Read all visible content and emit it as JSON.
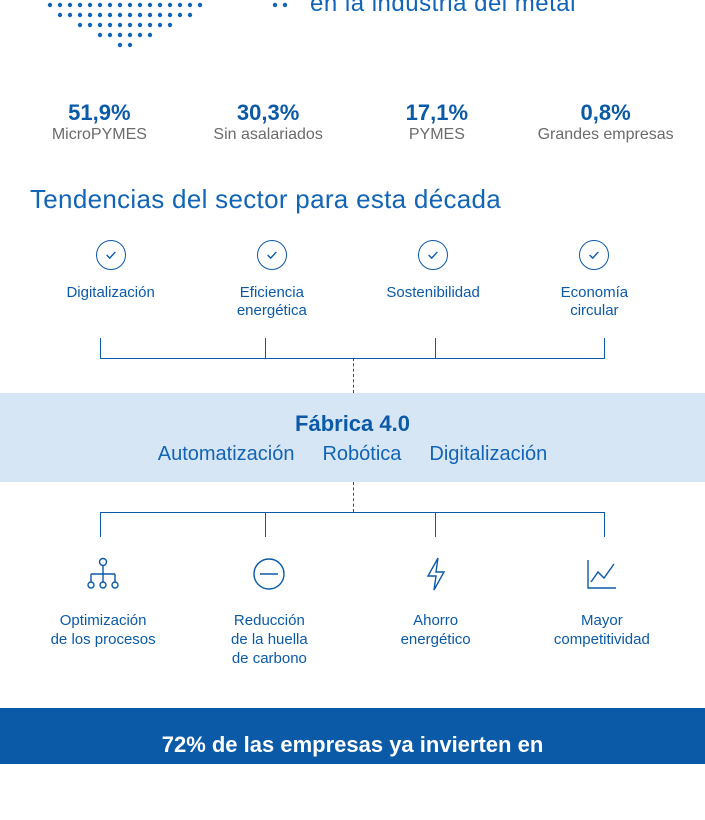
{
  "header": {
    "partial_title": "en la industria del metal"
  },
  "colors": {
    "primary": "#0b5aa8",
    "primary_light": "#1264b6",
    "band_bg": "#d7e6f4",
    "text_muted": "#6b6b6b",
    "footer_bg": "#0b5aa8",
    "footer_text": "#ffffff",
    "dot": "#1264b6"
  },
  "stats": [
    {
      "pct": "51,9%",
      "label": "MicroPYMES"
    },
    {
      "pct": "30,3%",
      "label": "Sin asalariados"
    },
    {
      "pct": "17,1%",
      "label": "PYMES"
    },
    {
      "pct": "0,8%",
      "label": "Grandes empresas"
    }
  ],
  "section_title": "Tendencias del sector para esta década",
  "trends": [
    {
      "label": "Digitalización"
    },
    {
      "label": "Eficiencia\nenergética"
    },
    {
      "label": "Sostenibilidad"
    },
    {
      "label": "Economía\ncircular"
    }
  ],
  "fabrica": {
    "title": "Fábrica 4.0",
    "subs": [
      "Automatización",
      "Robótica",
      "Digitalización"
    ]
  },
  "outcomes": [
    {
      "icon": "process-tree",
      "label": "Optimización\nde los procesos"
    },
    {
      "icon": "minus-circle",
      "label": "Reducción\nde la huella\nde carbono"
    },
    {
      "icon": "bolt",
      "label": "Ahorro\nenergético"
    },
    {
      "icon": "chart-up",
      "label": "Mayor\ncompetitividad"
    }
  ],
  "footer": {
    "text": "72% de las empresas ya invierten en"
  },
  "typography": {
    "stat_pct_size": 22,
    "stat_pct_weight": 700,
    "stat_label_size": 16,
    "section_title_size": 26,
    "trend_label_size": 15,
    "fabrica_title_size": 22,
    "fabrica_title_weight": 700,
    "fabrica_sub_size": 20,
    "outcome_label_size": 15,
    "footer_size": 22,
    "footer_weight": 700
  }
}
